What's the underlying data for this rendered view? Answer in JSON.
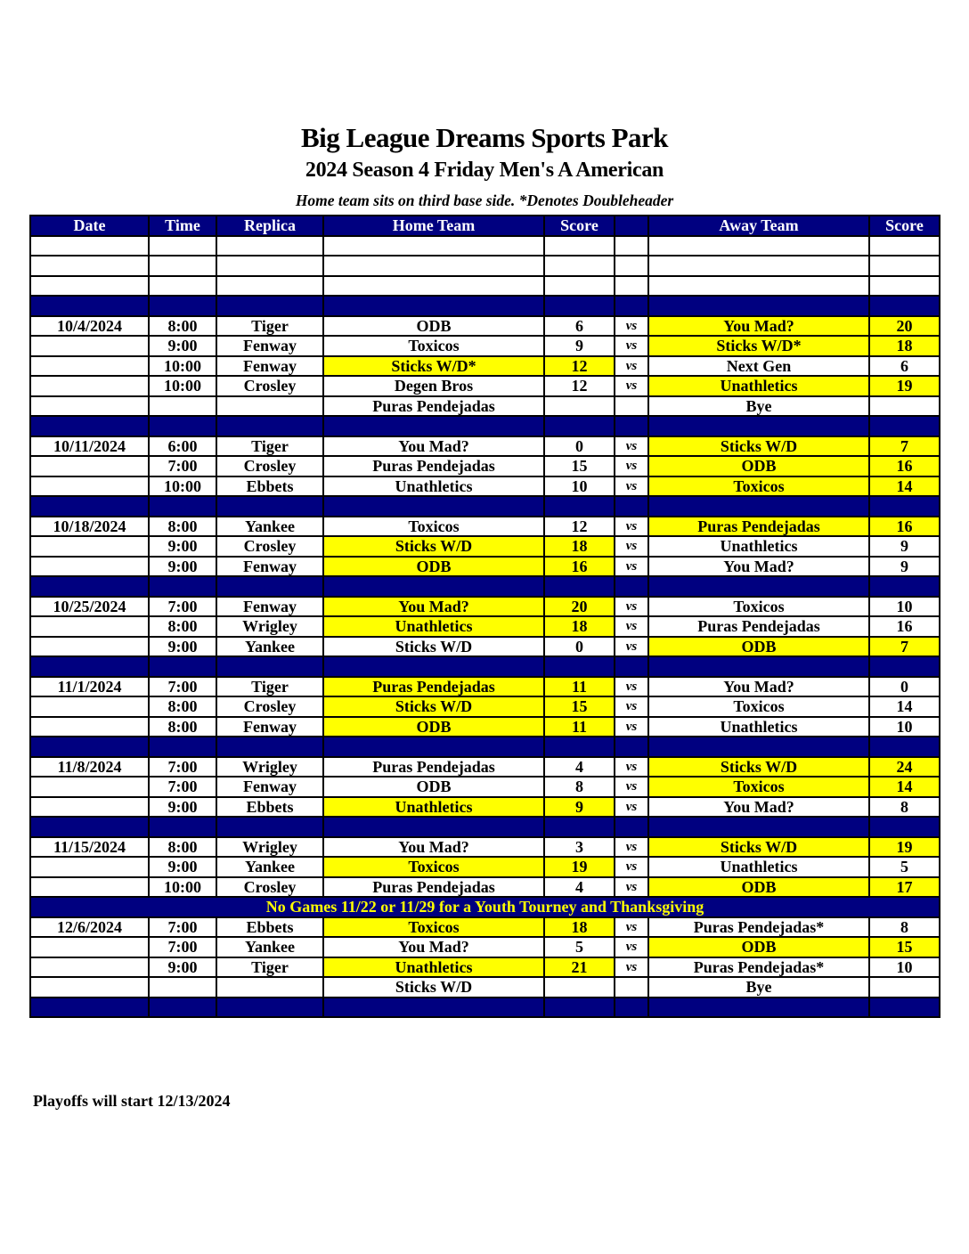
{
  "title": "Big League Dreams Sports Park",
  "subtitle": "2024 Season 4 Friday Men's A American",
  "note": "Home team sits on third base side.  *Denotes Doubleheader",
  "colors": {
    "header_bg": "#000080",
    "header_text": "#ffffff",
    "winner_highlight": "#ffff00",
    "banner_text": "#ffff00"
  },
  "columns": [
    "Date",
    "Time",
    "Replica",
    "Home Team",
    "Score",
    "",
    "Away Team",
    "Score"
  ],
  "vs_label": "vs",
  "rows": [
    {
      "type": "blank"
    },
    {
      "type": "blank"
    },
    {
      "type": "blank"
    },
    {
      "type": "sep"
    },
    {
      "type": "game",
      "date": "10/4/2024",
      "time": "8:00",
      "replica": "Tiger",
      "home": "ODB",
      "home_score": "6",
      "away": "You Mad?",
      "away_score": "20",
      "winner": "away"
    },
    {
      "type": "game",
      "date": "",
      "time": "9:00",
      "replica": "Fenway",
      "home": "Toxicos",
      "home_score": "9",
      "away": "Sticks W/D*",
      "away_score": "18",
      "winner": "away"
    },
    {
      "type": "game",
      "date": "",
      "time": "10:00",
      "replica": "Fenway",
      "home": "Sticks W/D*",
      "home_score": "12",
      "away": "Next Gen",
      "away_score": "6",
      "winner": "home"
    },
    {
      "type": "game",
      "date": "",
      "time": "10:00",
      "replica": "Crosley",
      "home": "Degen Bros",
      "home_score": "12",
      "away": "Unathletics",
      "away_score": "19",
      "winner": "away"
    },
    {
      "type": "bye",
      "date": "",
      "time": "",
      "replica": "",
      "home": "Puras Pendejadas",
      "home_score": "",
      "away": "Bye",
      "away_score": "",
      "winner": ""
    },
    {
      "type": "sep"
    },
    {
      "type": "game",
      "date": "10/11/2024",
      "time": "6:00",
      "replica": "Tiger",
      "home": "You Mad?",
      "home_score": "0",
      "away": "Sticks W/D",
      "away_score": "7",
      "winner": "away"
    },
    {
      "type": "game",
      "date": "",
      "time": "7:00",
      "replica": "Crosley",
      "home": "Puras Pendejadas",
      "home_score": "15",
      "away": "ODB",
      "away_score": "16",
      "winner": "away"
    },
    {
      "type": "game",
      "date": "",
      "time": "10:00",
      "replica": "Ebbets",
      "home": "Unathletics",
      "home_score": "10",
      "away": "Toxicos",
      "away_score": "14",
      "winner": "away"
    },
    {
      "type": "sep"
    },
    {
      "type": "game",
      "date": "10/18/2024",
      "time": "8:00",
      "replica": "Yankee",
      "home": "Toxicos",
      "home_score": "12",
      "away": "Puras Pendejadas",
      "away_score": "16",
      "winner": "away"
    },
    {
      "type": "game",
      "date": "",
      "time": "9:00",
      "replica": "Crosley",
      "home": "Sticks W/D",
      "home_score": "18",
      "away": "Unathletics",
      "away_score": "9",
      "winner": "home"
    },
    {
      "type": "game",
      "date": "",
      "time": "9:00",
      "replica": "Fenway",
      "home": "ODB",
      "home_score": "16",
      "away": "You Mad?",
      "away_score": "9",
      "winner": "home"
    },
    {
      "type": "sep"
    },
    {
      "type": "game",
      "date": "10/25/2024",
      "time": "7:00",
      "replica": "Fenway",
      "home": "You Mad?",
      "home_score": "20",
      "away": "Toxicos",
      "away_score": "10",
      "winner": "home"
    },
    {
      "type": "game",
      "date": "",
      "time": "8:00",
      "replica": "Wrigley",
      "home": "Unathletics",
      "home_score": "18",
      "away": "Puras Pendejadas",
      "away_score": "16",
      "winner": "home"
    },
    {
      "type": "game",
      "date": "",
      "time": "9:00",
      "replica": "Yankee",
      "home": "Sticks W/D",
      "home_score": "0",
      "away": "ODB",
      "away_score": "7",
      "winner": "away"
    },
    {
      "type": "sep"
    },
    {
      "type": "game",
      "date": "11/1/2024",
      "time": "7:00",
      "replica": "Tiger",
      "home": "Puras Pendejadas",
      "home_score": "11",
      "away": "You Mad?",
      "away_score": "0",
      "winner": "home"
    },
    {
      "type": "game",
      "date": "",
      "time": "8:00",
      "replica": "Crosley",
      "home": "Sticks W/D",
      "home_score": "15",
      "away": "Toxicos",
      "away_score": "14",
      "winner": "home"
    },
    {
      "type": "game",
      "date": "",
      "time": "8:00",
      "replica": "Fenway",
      "home": "ODB",
      "home_score": "11",
      "away": "Unathletics",
      "away_score": "10",
      "winner": "home"
    },
    {
      "type": "sep"
    },
    {
      "type": "game",
      "date": "11/8/2024",
      "time": "7:00",
      "replica": "Wrigley",
      "home": "Puras Pendejadas",
      "home_score": "4",
      "away": "Sticks W/D",
      "away_score": "24",
      "winner": "away"
    },
    {
      "type": "game",
      "date": "",
      "time": "7:00",
      "replica": "Fenway",
      "home": "ODB",
      "home_score": "8",
      "away": "Toxicos",
      "away_score": "14",
      "winner": "away"
    },
    {
      "type": "game",
      "date": "",
      "time": "9:00",
      "replica": "Ebbets",
      "home": "Unathletics",
      "home_score": "9",
      "away": "You Mad?",
      "away_score": "8",
      "winner": "home"
    },
    {
      "type": "sep"
    },
    {
      "type": "game",
      "date": "11/15/2024",
      "time": "8:00",
      "replica": "Wrigley",
      "home": "You Mad?",
      "home_score": "3",
      "away": "Sticks W/D",
      "away_score": "19",
      "winner": "away"
    },
    {
      "type": "game",
      "date": "",
      "time": "9:00",
      "replica": "Yankee",
      "home": "Toxicos",
      "home_score": "19",
      "away": "Unathletics",
      "away_score": "5",
      "winner": "home"
    },
    {
      "type": "game",
      "date": "",
      "time": "10:00",
      "replica": "Crosley",
      "home": "Puras Pendejadas",
      "home_score": "4",
      "away": "ODB",
      "away_score": "17",
      "winner": "away"
    },
    {
      "type": "banner",
      "text": "No Games 11/22 or 11/29  for a Youth Tourney and Thanksgiving"
    },
    {
      "type": "game",
      "date": "12/6/2024",
      "time": "7:00",
      "replica": "Ebbets",
      "home": "Toxicos",
      "home_score": "18",
      "away": "Puras Pendejadas*",
      "away_score": "8",
      "winner": "home"
    },
    {
      "type": "game",
      "date": "",
      "time": "7:00",
      "replica": "Yankee",
      "home": "You Mad?",
      "home_score": "5",
      "away": "ODB",
      "away_score": "15",
      "winner": "away"
    },
    {
      "type": "game",
      "date": "",
      "time": "9:00",
      "replica": "Tiger",
      "home": "Unathletics",
      "home_score": "21",
      "away": "Puras Pendejadas*",
      "away_score": "10",
      "winner": "home"
    },
    {
      "type": "bye",
      "date": "",
      "time": "",
      "replica": "",
      "home": "Sticks W/D",
      "home_score": "",
      "away": "Bye",
      "away_score": "",
      "winner": ""
    },
    {
      "type": "sep"
    }
  ],
  "footer": "Playoffs will start 12/13/2024"
}
